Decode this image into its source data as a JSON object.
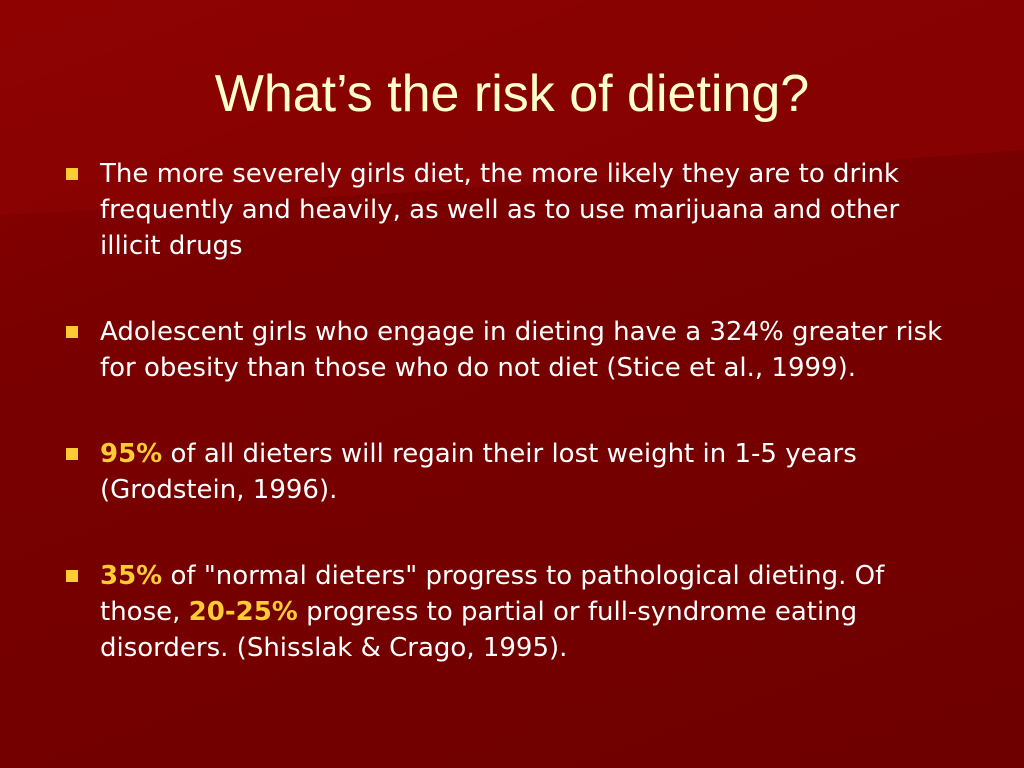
{
  "title": "What’s the risk of dieting?",
  "bullets": [
    {
      "segments": [
        {
          "text": "The more severely girls diet, the more likely they are to drink frequently and heavily, as well as to use marijuana and other illicit drugs"
        }
      ]
    },
    {
      "segments": [
        {
          "text": "Adolescent girls who engage in dieting have a 324% greater risk for obesity than those who do not diet (Stice et al., 1999)."
        }
      ]
    },
    {
      "segments": [
        {
          "text": "95%",
          "strong": true
        },
        {
          "text": " of all dieters will regain their lost weight in 1-5 years (Grodstein, 1996)."
        }
      ]
    },
    {
      "segments": [
        {
          "text": "35%",
          "strong": true
        },
        {
          "text": " of \"normal dieters\" progress to pathological dieting. Of those, "
        },
        {
          "text": "20-25%",
          "strong": true
        },
        {
          "text": " progress to partial or full-syndrome eating disorders. (Shisslak & Crago, 1995)."
        }
      ]
    }
  ]
}
